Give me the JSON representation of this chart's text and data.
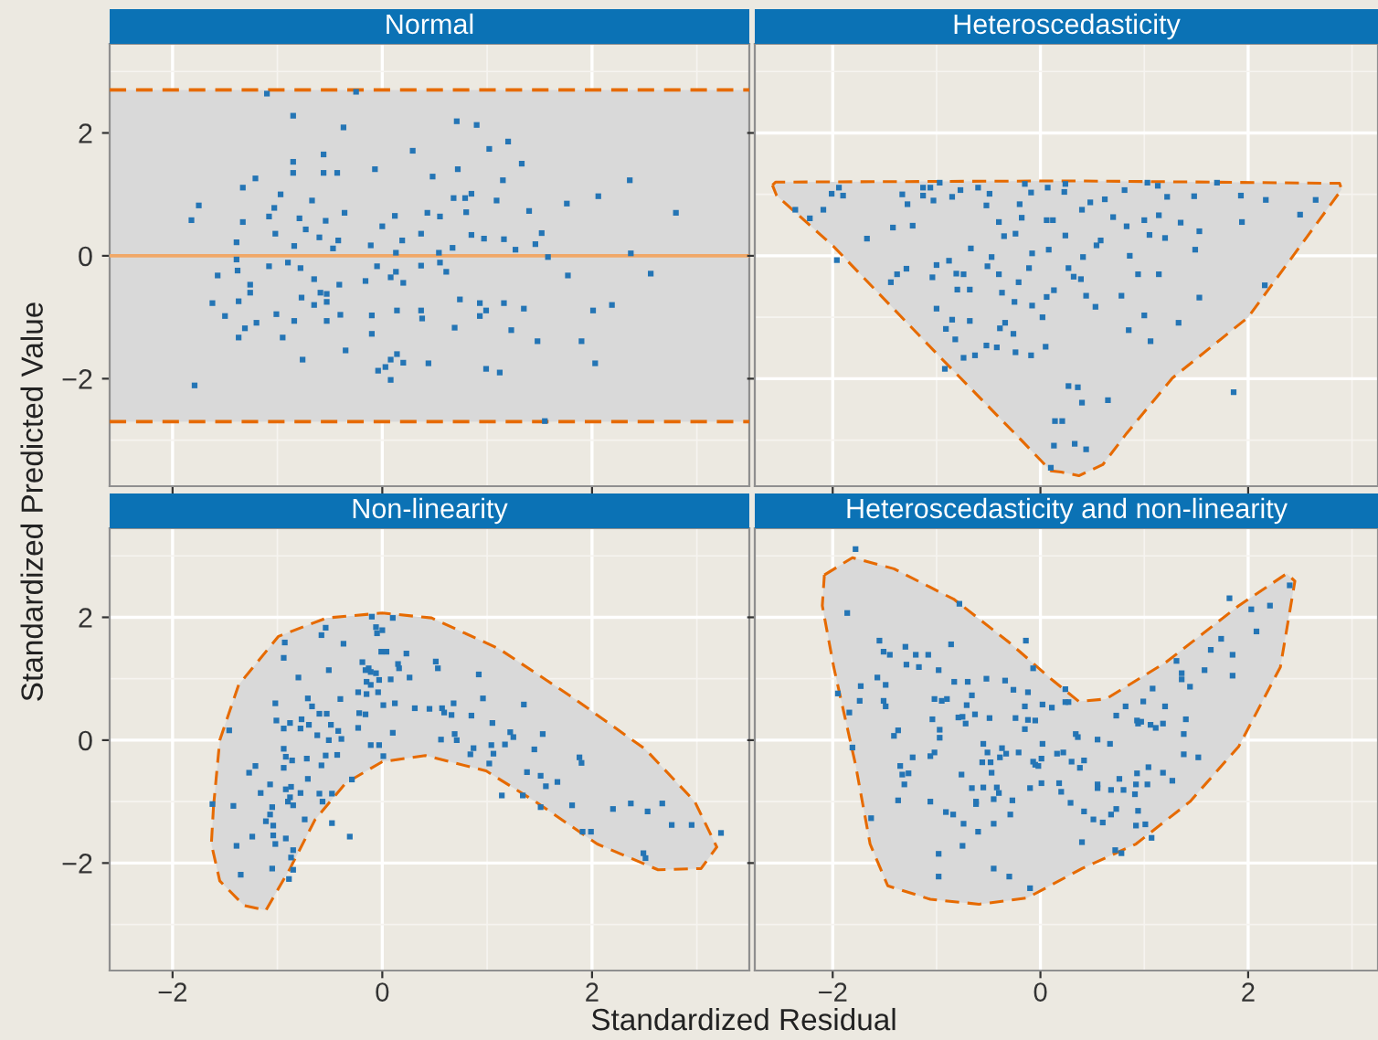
{
  "chart_data": [
    {
      "type": "scatter",
      "title": "Normal",
      "ylabel": "Standardized Predicted Value",
      "xlim": [
        -2.6,
        3.5
      ],
      "ylim": [
        -3.75,
        3.45
      ],
      "xticks": [
        -2,
        0,
        2
      ],
      "yticks": [
        {
          "value": -2,
          "label": "−2"
        },
        0,
        2
      ],
      "tick_labels": "y",
      "grid": true,
      "bands": [
        {
          "axis": "y",
          "from": -2.7,
          "to": 2.7,
          "color": "#d9d9d9"
        }
      ],
      "ref_lines": [
        {
          "axis": "y",
          "value": 2.7,
          "color": "#e66a00",
          "line_style": "dashed"
        },
        {
          "axis": "y",
          "value": -2.7,
          "color": "#e66a00",
          "line_style": "dashed"
        },
        {
          "axis": "y",
          "value": 0,
          "color": "#f0a868",
          "line_style": "solid"
        }
      ],
      "series": [
        {
          "marker": "square",
          "color": "#2475b5",
          "x": [
            -1.1,
            -0.25,
            -0.85,
            -0.37,
            0.71,
            0.9,
            1.2,
            1.02,
            0.29,
            -0.56,
            -0.85,
            1.33,
            -0.07,
            0.72,
            -0.85,
            -0.56,
            -0.43,
            -1.21,
            -1.33,
            0.48,
            1.15,
            2.36,
            -0.97,
            2.06,
            -1.75,
            -1.82,
            -1.33,
            -0.67,
            0.68,
            0.79,
            0.85,
            1.09,
            1.76,
            2.8,
            1.4,
            0.12,
            0.43,
            0.55,
            0.8,
            -1.03,
            -1.08,
            -0.79,
            -0.54,
            -0.36,
            0,
            -0.73,
            -1.02,
            -1.39,
            -0.6,
            -0.42,
            -0.11,
            0.19,
            0.37,
            0.85,
            0.97,
            1.16,
            1.52,
            1.46,
            1.27,
            0.67,
            0.54,
            0.13,
            -0.84,
            -0.47,
            2.37,
            1.58,
            -1.39,
            -1.38,
            -1.57,
            -1.08,
            -0.78,
            -0.9,
            -0.05,
            0.37,
            0.55,
            0.61,
            0.13,
            0.08,
            1.77,
            2.56,
            -0.65,
            -1.26,
            -0.41,
            -0.16,
            0.2,
            -1.26,
            -0.59,
            -0.53,
            -0.77,
            -1.62,
            -1.37,
            -0.65,
            -0.53,
            0.74,
            0.93,
            1.16,
            1.35,
            2.19,
            0.14,
            0.37,
            0.99,
            2.01,
            -1.5,
            -1.01,
            -0.4,
            -0.1,
            0.38,
            0.93,
            -0.84,
            -0.53,
            -1.2,
            -1.31,
            0.69,
            1.23,
            -1.37,
            -0.95,
            -0.1,
            1.48,
            1.9,
            -0.35,
            -0.76,
            0.14,
            0.2,
            0.08,
            0.03,
            -0.04,
            0.44,
            0.99,
            1.12,
            2.03,
            0.08,
            -1.79,
            1.55
          ],
          "values": [
            2.64,
            2.67,
            2.28,
            2.09,
            2.19,
            2.13,
            1.86,
            1.74,
            1.71,
            1.65,
            1.53,
            1.5,
            1.41,
            1.41,
            1.35,
            1.35,
            1.35,
            1.26,
            1.11,
            1.29,
            1.23,
            1.23,
            1.0,
            0.97,
            0.82,
            0.58,
            0.55,
            0.9,
            0.94,
            0.94,
            1.01,
            0.9,
            0.85,
            0.7,
            0.73,
            0.65,
            0.7,
            0.64,
            0.71,
            0.78,
            0.64,
            0.61,
            0.57,
            0.7,
            0.48,
            0.43,
            0.36,
            0.22,
            0.3,
            0.25,
            0.17,
            0.25,
            0.36,
            0.34,
            0.28,
            0.27,
            0.37,
            0.19,
            0.1,
            0.13,
            0.05,
            0.05,
            0.16,
            0.12,
            0.04,
            -0.02,
            -0.06,
            -0.24,
            -0.32,
            -0.17,
            -0.2,
            -0.11,
            -0.17,
            -0.16,
            -0.11,
            -0.26,
            -0.26,
            -0.35,
            -0.32,
            -0.29,
            -0.38,
            -0.47,
            -0.47,
            -0.41,
            -0.44,
            -0.6,
            -0.6,
            -0.62,
            -0.68,
            -0.77,
            -0.74,
            -0.8,
            -0.75,
            -0.71,
            -0.77,
            -0.77,
            -0.86,
            -0.8,
            -0.89,
            -0.89,
            -0.89,
            -0.89,
            -0.98,
            -0.95,
            -0.96,
            -0.97,
            -1.02,
            -0.98,
            -1.06,
            -1.06,
            -1.09,
            -1.18,
            -1.17,
            -1.21,
            -1.33,
            -1.33,
            -1.27,
            -1.39,
            -1.39,
            -1.54,
            -1.69,
            -1.6,
            -1.74,
            -1.69,
            -1.81,
            -1.87,
            -1.75,
            -1.84,
            -1.9,
            -1.75,
            -2.02,
            -2.11,
            -2.69
          ]
        }
      ]
    },
    {
      "type": "scatter",
      "title": "Heteroscedasticity",
      "xlim": [
        -2.75,
        3.25
      ],
      "ylim": [
        -3.75,
        3.45
      ],
      "xticks": [
        -2,
        0,
        2
      ],
      "yticks": [
        -2,
        0,
        2
      ],
      "tick_labels": false,
      "grid": true,
      "series": [
        {
          "type": "area",
          "color": "#e66a00",
          "line_style": "dashed",
          "x": [
            -2.58,
            -2.55,
            0.3,
            2.88,
            2.9,
            2.0,
            1.27,
            0.83,
            0.6,
            0.37,
            0.2,
            0.1,
            -0.19,
            -1.0,
            -1.99,
            -2.54,
            -2.58
          ],
          "values": [
            1.15,
            1.2,
            1.22,
            1.18,
            1.08,
            -1.0,
            -1.99,
            -2.89,
            -3.4,
            -3.58,
            -3.52,
            -3.5,
            -2.99,
            -1.59,
            0.15,
            0.98,
            1.15
          ]
        },
        {
          "marker": "square",
          "color": "#2475b5",
          "x": [
            -1.94,
            -2.01,
            -1.9,
            -2.36,
            -2.22,
            -2.09,
            -1.96,
            -1.67,
            -1.42,
            -1.23,
            -1.33,
            -1.28,
            -1.13,
            -1.06,
            -0.97,
            -1.03,
            -1.13,
            -0.85,
            -0.77,
            -0.6,
            -0.49,
            -0.52,
            -0.4,
            -0.2,
            -0.15,
            -0.09,
            0.07,
            0.24,
            0.23,
            0.4,
            0.48,
            0.62,
            0.81,
            1.03,
            1.13,
            1.22,
            1.48,
            1.7,
            1.93,
            2.17,
            2.65,
            2.5,
            1.94,
            1.53,
            1.35,
            1.49,
            1.14,
            1.0,
            1.05,
            1.2,
            0.83,
            0.7,
            0.58,
            0.54,
            0.24,
            0.06,
            0.12,
            -0.18,
            -0.35,
            -0.24,
            -0.08,
            0.08,
            0.41,
            0.27,
            0.32,
            0.39,
            0.94,
            1.14,
            0.86,
            0.78,
            0.44,
            0.53,
            1.0,
            1.33,
            0.85,
            1.06,
            1.53,
            2.16,
            1.86,
            -0.11,
            -0.21,
            -0.37,
            -0.4,
            -0.51,
            -0.81,
            -0.74,
            -0.67,
            -0.47,
            -0.68,
            -0.8,
            -0.88,
            -1.0,
            -1.04,
            -1.29,
            -1.38,
            -1.44,
            -1.0,
            -0.85,
            -0.91,
            -0.82,
            -0.68,
            -0.34,
            -0.39,
            -0.26,
            -0.42,
            -0.52,
            -0.63,
            -0.74,
            -0.92,
            -0.24,
            -0.09,
            0.05,
            0.02,
            -0.08,
            -0.25,
            0.13,
            0.06,
            0.27,
            0.36,
            0.4,
            0.65,
            0.14,
            0.21,
            0.33,
            0.13,
            0.44,
            0.1
          ],
          "values": [
            1.11,
            1.01,
            0.98,
            0.75,
            0.61,
            0.75,
            -0.07,
            0.28,
            0.46,
            0.49,
            1.0,
            0.84,
            1.11,
            1.11,
            1.19,
            0.9,
            0.98,
            0.96,
            1.07,
            1.11,
            1.01,
            0.82,
            0.55,
            0.84,
            1.17,
            1.03,
            1.11,
            1.17,
            1.04,
            0.75,
            0.87,
            0.92,
            1.07,
            1.19,
            1.14,
            0.96,
            0.97,
            1.19,
            0.98,
            0.91,
            0.91,
            0.67,
            0.55,
            0.4,
            0.54,
            0.1,
            0.66,
            0.58,
            0.34,
            0.29,
            0.48,
            0.63,
            0.25,
            0.17,
            0.33,
            0.58,
            0.58,
            0.62,
            0.32,
            0.36,
            0.04,
            0.1,
            -0.02,
            -0.2,
            -0.34,
            -0.38,
            -0.3,
            -0.3,
            0.0,
            -0.65,
            -0.65,
            -0.83,
            -0.97,
            -1.09,
            -1.21,
            -1.39,
            -0.68,
            -0.48,
            -2.22,
            -0.2,
            -0.43,
            -0.6,
            -0.3,
            -0.17,
            -0.29,
            -0.3,
            0.12,
            -0.02,
            -0.55,
            -0.55,
            -0.08,
            -0.15,
            -0.35,
            -0.21,
            -0.3,
            -0.43,
            -0.86,
            -1.04,
            -1.19,
            -1.36,
            -1.06,
            -1.09,
            -1.18,
            -1.27,
            -1.49,
            -1.46,
            -1.62,
            -1.66,
            -1.84,
            -1.57,
            -1.62,
            -1.48,
            -1.0,
            -0.81,
            -0.75,
            -0.56,
            -0.67,
            -2.12,
            -2.14,
            -2.39,
            -2.35,
            -2.69,
            -2.69,
            -3.06,
            -3.09,
            -3.15,
            -3.45
          ]
        }
      ]
    },
    {
      "type": "scatter",
      "title": "Non-linearity",
      "xlabel": "Standardized Residual",
      "xlim": [
        -2.6,
        3.5
      ],
      "ylim": [
        -3.75,
        3.45
      ],
      "xticks": [
        {
          "value": -2,
          "label": "−2"
        },
        0,
        2
      ],
      "yticks": [
        {
          "value": -2,
          "label": "−2"
        },
        0,
        2
      ],
      "grid": true,
      "series": [
        {
          "type": "area",
          "color": "#e66a00",
          "line_style": "dashed",
          "x": [
            -1.61,
            -1.55,
            -1.37,
            -0.99,
            -0.53,
            0,
            0.47,
            1.11,
            1.81,
            2.51,
            2.98,
            3.19,
            3.04,
            2.63,
            2.05,
            1.46,
            0.99,
            0.41,
            0,
            -0.35,
            -0.64,
            -0.88,
            -1.11,
            -1.32,
            -1.55,
            -1.63,
            -1.61
          ],
          "values": [
            -1.09,
            0,
            0.9,
            1.69,
            1.99,
            2.07,
            1.99,
            1.49,
            0.7,
            -0.15,
            -1.0,
            -1.74,
            -2.09,
            -2.11,
            -1.69,
            -1.0,
            -0.5,
            -0.25,
            -0.35,
            -0.7,
            -1.29,
            -2.09,
            -2.77,
            -2.69,
            -2.29,
            -1.69,
            -1.09
          ]
        },
        {
          "marker": "square",
          "color": "#2475b5",
          "x": [
            -0.1,
            -0.06,
            0,
            -0.05,
            0.1,
            -0.54,
            -0.58,
            -0.93,
            -0.37,
            -0.94,
            -0.01,
            0.04,
            0.23,
            0.51,
            0.53,
            0.15,
            0.16,
            -0.51,
            -0.19,
            -0.16,
            -0.13,
            -0.11,
            -0.06,
            -0.03,
            0.08,
            0.26,
            0.92,
            -0.8,
            -0.15,
            -0.11,
            -0.15,
            -0.23,
            -0.04,
            -0.4,
            -1.02,
            -0.71,
            -0.67,
            -0.53,
            -0.6,
            0.01,
            0.12,
            0.31,
            0.45,
            0.57,
            0.68,
            0.66,
            0.59,
            0.96,
            0.85,
            1.35,
            -1.01,
            -0.88,
            -0.77,
            -0.7,
            -0.22,
            -0.16,
            -0.23,
            0.1,
            -1.46,
            -0.94,
            -0.78,
            -0.62,
            -0.49,
            -0.42,
            -0.39,
            -0.51,
            -0.11,
            -0.03,
            0.01,
            0.56,
            0.69,
            0.71,
            1.05,
            1.22,
            1.25,
            1.17,
            1.04,
            1.06,
            1.02,
            0.87,
            0.84,
            1.53,
            1.45,
            1.88,
            1.9,
            1.38,
            1.51,
            1.67,
            1.56,
            1.14,
            1.34,
            1.51,
            1.81,
            2.2,
            2.37,
            2.53,
            2.67,
            2.76,
            2.95,
            1.91,
            1.99,
            2.49,
            2.51,
            3.23,
            -0.94,
            -0.92,
            -0.86,
            -0.72,
            -0.58,
            -0.54,
            -0.43,
            -1.27,
            -1.21,
            -0.94,
            -1.07,
            -0.92,
            -0.87,
            -0.78,
            -0.71,
            -0.88,
            -0.9,
            -0.85,
            -0.6,
            -0.57,
            -0.48,
            -0.29,
            -1.62,
            -1.42,
            -1.16,
            -1.05,
            -1.07,
            -1.11,
            -1.04,
            -0.74,
            -0.48,
            -0.31,
            -1.24,
            -0.92,
            -1.04,
            -1.02,
            -1.39,
            -0.85,
            -0.87,
            -1.05,
            -0.85,
            -1.35,
            -0.89
          ],
          "values": [
            2.01,
            1.84,
            1.79,
            1.74,
            1.99,
            1.83,
            1.71,
            1.59,
            1.57,
            1.34,
            1.44,
            1.44,
            1.41,
            1.28,
            1.17,
            1.24,
            1.17,
            1.14,
            1.27,
            1.14,
            1.17,
            1.11,
            1.09,
            0.98,
            0.99,
            1.02,
            1.07,
            1.02,
            0.95,
            0.9,
            0.75,
            0.78,
            0.78,
            0.67,
            0.6,
            0.68,
            0.55,
            0.43,
            0.43,
            0.57,
            0.6,
            0.52,
            0.51,
            0.52,
            0.6,
            0.41,
            0.45,
            0.68,
            0.4,
            0.58,
            0.32,
            0.28,
            0.34,
            0.25,
            0.44,
            0.42,
            0.2,
            0.12,
            0.16,
            0.19,
            0.19,
            0.08,
            0.25,
            0.15,
            0.02,
            0,
            -0.08,
            -0.08,
            -0.26,
            0.01,
            0.1,
            0,
            0.28,
            0.13,
            0.05,
            -0.07,
            -0.08,
            -0.22,
            -0.38,
            -0.13,
            -0.23,
            0.1,
            -0.15,
            -0.28,
            -0.37,
            -0.52,
            -0.58,
            -0.68,
            -0.75,
            -0.9,
            -0.9,
            -1.09,
            -1.06,
            -1.12,
            -1.03,
            -1.16,
            -1.03,
            -1.38,
            -1.38,
            -1.49,
            -1.49,
            -1.84,
            -1.92,
            -1.51,
            -0.14,
            -0.27,
            -0.33,
            -0.3,
            -0.41,
            -0.25,
            -0.24,
            -0.53,
            -0.42,
            -0.45,
            -0.72,
            -0.8,
            -0.76,
            -0.86,
            -0.63,
            -0.93,
            -1.0,
            -1.06,
            -0.87,
            -1.0,
            -0.87,
            -0.64,
            -1.04,
            -1.07,
            -0.86,
            -1.09,
            -1.21,
            -1.32,
            -1.39,
            -1.29,
            -1.35,
            -1.57,
            -1.57,
            -1.6,
            -1.55,
            -1.69,
            -1.72,
            -1.79,
            -1.91,
            -2.09,
            -2.11,
            -2.19,
            -2.26
          ]
        }
      ]
    },
    {
      "type": "scatter",
      "title": "Heteroscedasticity and non-linearity",
      "xlim": [
        -2.75,
        3.25
      ],
      "ylim": [
        -3.75,
        3.45
      ],
      "xticks": [
        {
          "value": -2,
          "label": "−2"
        },
        0,
        2
      ],
      "yticks": [
        -2,
        0,
        2
      ],
      "tick_labels": "x",
      "grid": true,
      "series": [
        {
          "type": "area",
          "color": "#e66a00",
          "line_style": "dashed",
          "x": [
            -2.08,
            -1.81,
            -1.41,
            -0.83,
            -0.3,
            0.1,
            0.37,
            0.63,
            1.21,
            1.91,
            2.37,
            2.45,
            2.31,
            1.91,
            1.44,
            0.92,
            0.4,
            -0.13,
            -0.59,
            -1.06,
            -1.47,
            -1.64,
            -1.78,
            -1.99,
            -2.1,
            -2.08
          ],
          "values": [
            2.69,
            2.97,
            2.79,
            2.29,
            1.59,
            1.0,
            0.63,
            0.67,
            1.27,
            2.19,
            2.71,
            2.59,
            1.19,
            -0.1,
            -1.0,
            -1.69,
            -2.09,
            -2.57,
            -2.67,
            -2.59,
            -2.37,
            -1.69,
            -0.4,
            1.19,
            2.19,
            2.69
          ]
        },
        {
          "marker": "square",
          "color": "#2475b5",
          "x": [
            -1.78,
            -1.86,
            -1.55,
            -1.51,
            -1.45,
            -1.3,
            -1.2,
            -1.08,
            -1.17,
            -1.29,
            -0.86,
            -0.98,
            -0.78,
            -0.14,
            -0.07,
            -1.57,
            -1.73,
            -1.49,
            -1.95,
            -1.74,
            -1.84,
            -1.51,
            -1.49,
            -1.81,
            -1.37,
            -1.41,
            -1.23,
            -1.35,
            -1.33,
            -1.27,
            -1.31,
            -1.37,
            -1.63,
            -1.06,
            -0.91,
            -0.84,
            -0.98,
            -0.98,
            -0.75,
            -0.74,
            -0.6,
            -0.45,
            -0.45,
            -0.3,
            -0.1,
            -0.83,
            -0.7,
            -0.66,
            -0.71,
            -0.9,
            -1.02,
            -0.95,
            -0.52,
            -0.34,
            -0.26,
            -0.12,
            0.02,
            0.11,
            0.24,
            -0.15,
            -0.12,
            -0.05,
            -0.24,
            -0.15,
            -0.63,
            -0.49,
            -0.75,
            -0.72,
            -0.79,
            -1.04,
            -0.97,
            -1.02,
            -1.06,
            -0.97,
            -0.55,
            -0.51,
            -0.37,
            -0.33,
            -0.39,
            -0.21,
            -0.56,
            -0.48,
            -0.47,
            -0.76,
            -0.66,
            -0.55,
            -0.42,
            -0.4,
            -0.45,
            -0.62,
            -0.62,
            -0.27,
            -0.29,
            -0.1,
            -0.07,
            -0.05,
            0.01,
            -0.02,
            0.02,
            0.01,
            0.16,
            0.22,
            0.2,
            0.18,
            0.3,
            0.38,
            0.42,
            0.29,
            0.34,
            0.36,
            0.55,
            0.67,
            0.42,
            0.51,
            0.4,
            0.55,
            0.55,
            0.68,
            0.8,
            0.76,
            0.73,
            0.6,
            0.68,
            0.72,
            0.78,
            0.92,
            0.93,
            1.04,
            1.03,
            1.18,
            1.27,
            0.91,
            0.94,
            1.01,
            0.92,
            1.07,
            0.73,
            0.82,
            0.93,
            0.94,
            0.99,
            1.08,
            0.97,
            1.06,
            1.11,
            1.18,
            1.2,
            1.31,
            1.36,
            1.36,
            1.44,
            1.4,
            1.38,
            1.38,
            1.52,
            1.58,
            1.64,
            1.74,
            1.85,
            1.85,
            1.82,
            2.03,
            2.08,
            2.21,
            2.4,
            0.24,
            0.27
          ],
          "values": [
            3.11,
            2.07,
            1.62,
            1.44,
            1.39,
            1.52,
            1.39,
            1.39,
            1.19,
            1.23,
            1.56,
            1.14,
            2.22,
            1.62,
            1.17,
            1.02,
            0.88,
            0.9,
            0.76,
            0.64,
            0.45,
            0.64,
            0.55,
            -0.12,
            0.16,
            0.07,
            -0.28,
            -0.42,
            -0.56,
            -0.54,
            -0.72,
            -0.98,
            -1.27,
            -1.0,
            -1.17,
            -1.21,
            -1.85,
            -2.22,
            -1.72,
            -1.36,
            -1.49,
            -1.36,
            -2.09,
            -2.22,
            -2.41,
            0.95,
            0.95,
            0.73,
            0.57,
            0.67,
            0.67,
            0.64,
            1.0,
            0.97,
            0.82,
            0.78,
            0.58,
            0.53,
            0.62,
            0.55,
            0.33,
            0.32,
            0.36,
            0.18,
            0.42,
            0.36,
            0.38,
            0.27,
            0.37,
            0.34,
            0.17,
            -0.2,
            -0.26,
            0.04,
            -0.06,
            -0.2,
            -0.13,
            -0.22,
            -0.28,
            -0.2,
            -0.36,
            -0.36,
            -0.53,
            -0.56,
            -0.78,
            -0.77,
            -0.77,
            -0.86,
            -0.96,
            -1.0,
            -1.04,
            -0.98,
            -1.21,
            -0.78,
            -0.35,
            -0.4,
            -0.3,
            -0.42,
            -0.06,
            -0.7,
            -0.22,
            -0.2,
            -0.84,
            -0.7,
            -0.35,
            -0.45,
            -0.33,
            -1.02,
            0.1,
            0.05,
            0.01,
            -0.06,
            -1.16,
            -1.29,
            -1.66,
            -0.72,
            -0.78,
            -0.81,
            -0.81,
            -0.63,
            -1.12,
            -1.34,
            -1.21,
            -1.79,
            -1.84,
            -0.72,
            -0.54,
            -0.44,
            -0.72,
            -0.53,
            -0.66,
            -0.88,
            -1.15,
            -1.37,
            -1.39,
            -1.59,
            0.4,
            0.55,
            0.32,
            0.27,
            0.63,
            0.84,
            0.3,
            0.25,
            0.2,
            0.27,
            0.55,
            1.29,
            1.09,
            0.99,
            0.87,
            0.34,
            0.1,
            -0.23,
            -0.28,
            1.14,
            1.47,
            1.65,
            1.39,
            1.05,
            2.31,
            2.13,
            1.77,
            2.19,
            2.52,
            0.83,
            0.62
          ]
        }
      ]
    }
  ]
}
